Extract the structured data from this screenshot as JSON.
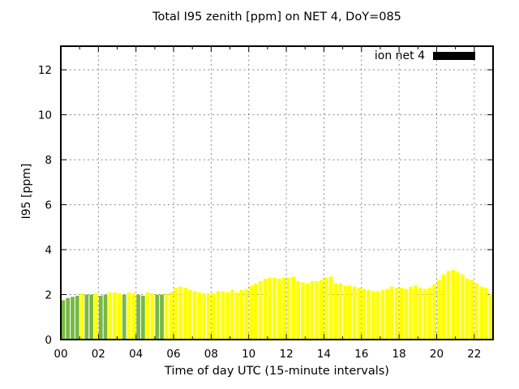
{
  "chart_data": {
    "type": "bar",
    "title": "Total I95 zenith [ppm] on NET 4, DoY=085",
    "xlabel": "Time of day UTC (15-minute intervals)",
    "ylabel": "I95 [ppm]",
    "ylim": [
      0,
      13.05
    ],
    "y_ticks": [
      0,
      2,
      4,
      6,
      8,
      10,
      12
    ],
    "x_tick_hours": [
      0,
      2,
      4,
      6,
      8,
      10,
      12,
      14,
      16,
      18,
      20,
      22
    ],
    "x_tick_labels": [
      "00",
      "02",
      "04",
      "06",
      "08",
      "10",
      "12",
      "14",
      "16",
      "18",
      "20",
      "22"
    ],
    "hours_span": 23,
    "interval_minutes": 15,
    "grid": true,
    "legend": {
      "label": "ion net 4",
      "swatch_color": "#000000",
      "position": "top-right"
    },
    "color_key": {
      "y": "#ffff00",
      "g": "#77b843"
    },
    "times": [
      "00:00",
      "00:15",
      "00:30",
      "00:45",
      "01:00",
      "01:15",
      "01:30",
      "01:45",
      "02:00",
      "02:15",
      "02:30",
      "02:45",
      "03:00",
      "03:15",
      "03:30",
      "03:45",
      "04:00",
      "04:15",
      "04:30",
      "04:45",
      "05:00",
      "05:15",
      "05:30",
      "05:45",
      "06:00",
      "06:15",
      "06:30",
      "06:45",
      "07:00",
      "07:15",
      "07:30",
      "07:45",
      "08:00",
      "08:15",
      "08:30",
      "08:45",
      "09:00",
      "09:15",
      "09:30",
      "09:45",
      "10:00",
      "10:15",
      "10:30",
      "10:45",
      "11:00",
      "11:15",
      "11:30",
      "11:45",
      "12:00",
      "12:15",
      "12:30",
      "12:45",
      "13:00",
      "13:15",
      "13:30",
      "13:45",
      "14:00",
      "14:15",
      "14:30",
      "14:45",
      "15:00",
      "15:15",
      "15:30",
      "15:45",
      "16:00",
      "16:15",
      "16:30",
      "16:45",
      "17:00",
      "17:15",
      "17:30",
      "17:45",
      "18:00",
      "18:15",
      "18:30",
      "18:45",
      "19:00",
      "19:15",
      "19:30",
      "19:45",
      "20:00",
      "20:15",
      "20:30",
      "20:45",
      "21:00",
      "21:15",
      "21:30",
      "21:45",
      "22:00",
      "22:15",
      "22:30",
      "22:45"
    ],
    "values": [
      1.75,
      1.85,
      1.9,
      1.95,
      2.05,
      2.0,
      2.0,
      2.05,
      1.95,
      2.0,
      2.1,
      2.1,
      2.05,
      2.0,
      2.1,
      2.05,
      2.0,
      1.95,
      2.1,
      2.05,
      2.0,
      2.0,
      2.05,
      2.1,
      2.3,
      2.35,
      2.3,
      2.2,
      2.15,
      2.1,
      2.05,
      2.05,
      2.05,
      2.15,
      2.15,
      2.1,
      2.2,
      2.1,
      2.2,
      2.25,
      2.4,
      2.5,
      2.6,
      2.7,
      2.75,
      2.75,
      2.7,
      2.75,
      2.75,
      2.8,
      2.6,
      2.55,
      2.5,
      2.6,
      2.6,
      2.65,
      2.75,
      2.8,
      2.5,
      2.5,
      2.4,
      2.4,
      2.35,
      2.3,
      2.25,
      2.2,
      2.15,
      2.15,
      2.2,
      2.25,
      2.35,
      2.3,
      2.3,
      2.25,
      2.35,
      2.4,
      2.3,
      2.25,
      2.3,
      2.45,
      2.65,
      2.9,
      3.05,
      3.1,
      3.0,
      2.9,
      2.7,
      2.65,
      2.5,
      2.35,
      2.3,
      2.05
    ],
    "bar_colors": [
      "g",
      "g",
      "g",
      "g",
      "y",
      "g",
      "g",
      "y",
      "g",
      "g",
      "y",
      "y",
      "y",
      "g",
      "y",
      "y",
      "g",
      "g",
      "y",
      "y",
      "g",
      "g",
      "y",
      "y",
      "y",
      "y",
      "y",
      "y",
      "y",
      "y",
      "y",
      "y",
      "y",
      "y",
      "y",
      "y",
      "y",
      "y",
      "y",
      "y",
      "y",
      "y",
      "y",
      "y",
      "y",
      "y",
      "y",
      "y",
      "y",
      "y",
      "y",
      "y",
      "y",
      "y",
      "y",
      "y",
      "y",
      "y",
      "y",
      "y",
      "y",
      "y",
      "y",
      "y",
      "y",
      "y",
      "y",
      "y",
      "y",
      "y",
      "y",
      "y",
      "y",
      "y",
      "y",
      "y",
      "y",
      "y",
      "y",
      "y",
      "y",
      "y",
      "y",
      "y",
      "y",
      "y",
      "y",
      "y",
      "y",
      "y",
      "y",
      "y"
    ]
  }
}
